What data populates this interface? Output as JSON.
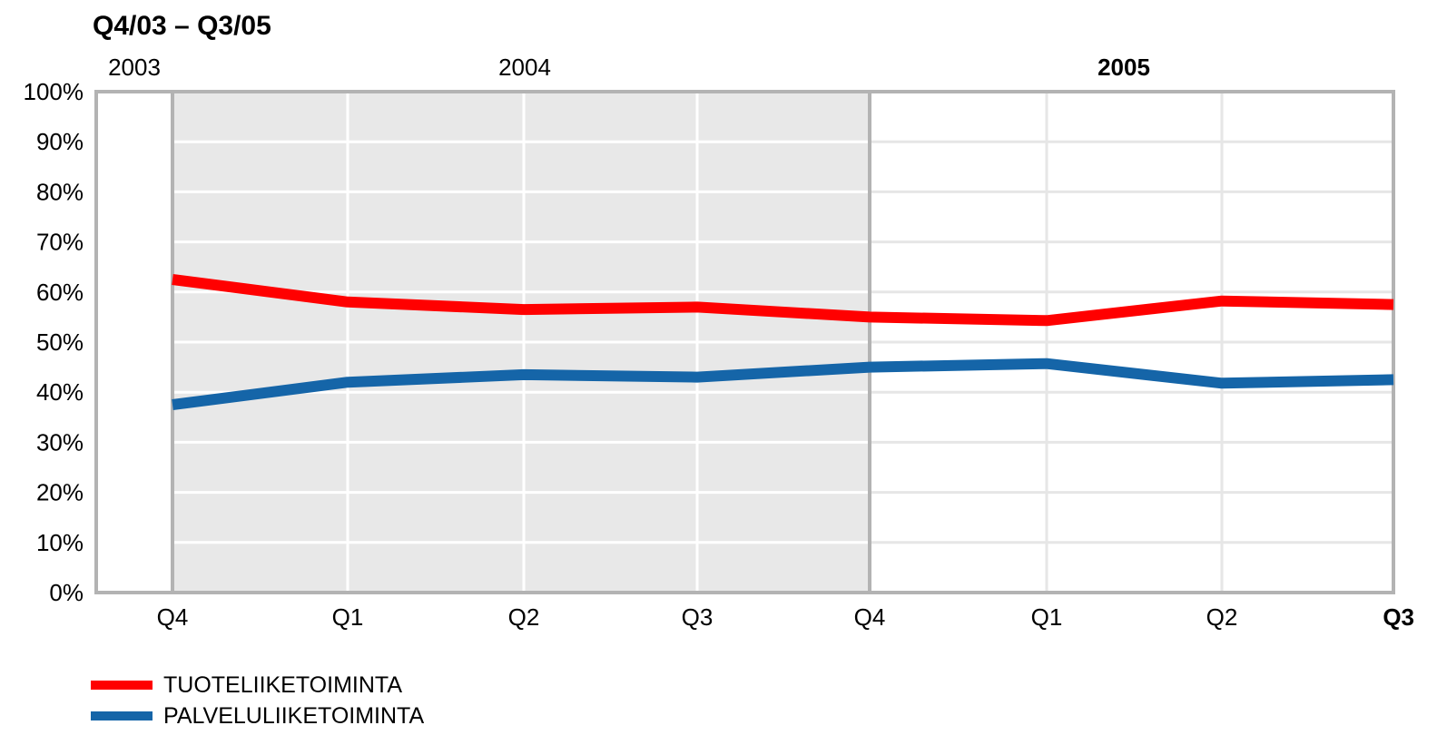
{
  "chart_data": {
    "type": "line",
    "title": "Q4/03 – Q3/05",
    "year_labels": [
      {
        "label": "2003",
        "bold": false
      },
      {
        "label": "2004",
        "bold": false
      },
      {
        "label": "2005",
        "bold": true
      }
    ],
    "categories": [
      "Q4",
      "Q1",
      "Q2",
      "Q3",
      "Q4",
      "Q1",
      "Q2",
      "Q3"
    ],
    "last_category_bold": true,
    "y_ticks": [
      "0%",
      "10%",
      "20%",
      "30%",
      "40%",
      "50%",
      "60%",
      "70%",
      "80%",
      "90%",
      "100%"
    ],
    "ylim": [
      0,
      100
    ],
    "shaded_period": "Q4 2003 – Q4 2004",
    "series": [
      {
        "name": "TUOTELIIKETOIMINTA",
        "color": "#ff0000",
        "values": [
          62.5,
          58,
          56.5,
          57,
          55,
          54.3,
          58.2,
          57.5
        ]
      },
      {
        "name": "PALVELULIIKETOIMINTA",
        "color": "#1565a8",
        "values": [
          37.5,
          42,
          43.5,
          43,
          45,
          45.7,
          41.8,
          42.5
        ]
      }
    ],
    "colors": {
      "shade": "#e8e8e8",
      "frame": "#b3b3b3",
      "grid_shaded": "#ffffff",
      "grid_unshaded": "#e6e6e6"
    }
  }
}
